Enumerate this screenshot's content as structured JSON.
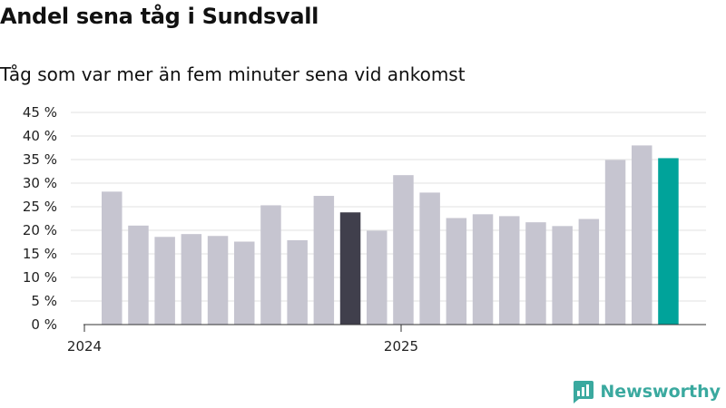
{
  "header": {
    "title": "Andel sena tåg i Sundsvall",
    "subtitle": "Tåg som var mer än fem minuter sena vid ankomst"
  },
  "brand": {
    "name": "Newsworthy"
  },
  "colors": {
    "bar_default": "#c6c5d0",
    "bar_highlight_prev": "#403f4c",
    "bar_highlight_current": "#00a39a",
    "brand": "#3aa99f"
  },
  "chart_data": {
    "type": "bar",
    "title": "Andel sena tåg i Sundsvall",
    "subtitle": "Tåg som var mer än fem minuter sena vid ankomst",
    "xlabel": "",
    "ylabel": "",
    "ylim": [
      0,
      45
    ],
    "yticks": [
      0,
      5,
      10,
      15,
      20,
      25,
      30,
      35,
      40,
      45
    ],
    "ytick_labels": [
      "0 %",
      "5 %",
      "10 %",
      "15 %",
      "20 %",
      "25 %",
      "30 %",
      "35 %",
      "40 %",
      "45 %"
    ],
    "grid": true,
    "categories": [
      "2024-01",
      "2024-02",
      "2024-03",
      "2024-04",
      "2024-05",
      "2024-06",
      "2024-07",
      "2024-08",
      "2024-09",
      "2024-10",
      "2024-11",
      "2024-12",
      "2025-01",
      "2025-02",
      "2025-03",
      "2025-04",
      "2025-05",
      "2025-06",
      "2025-07",
      "2025-08",
      "2025-09",
      "2025-10"
    ],
    "values": [
      28.2,
      21.0,
      18.6,
      19.2,
      18.8,
      17.6,
      25.3,
      17.9,
      27.3,
      23.8,
      19.9,
      31.7,
      28.0,
      22.6,
      23.4,
      23.0,
      21.7,
      20.9,
      22.4,
      34.9,
      38.0,
      35.3
    ],
    "highlight": {
      "9": "previous",
      "21": "current"
    },
    "x_tick_labels": [
      {
        "label": "2024",
        "at_index": 0
      },
      {
        "label": "2025",
        "at_index": 11
      }
    ]
  }
}
